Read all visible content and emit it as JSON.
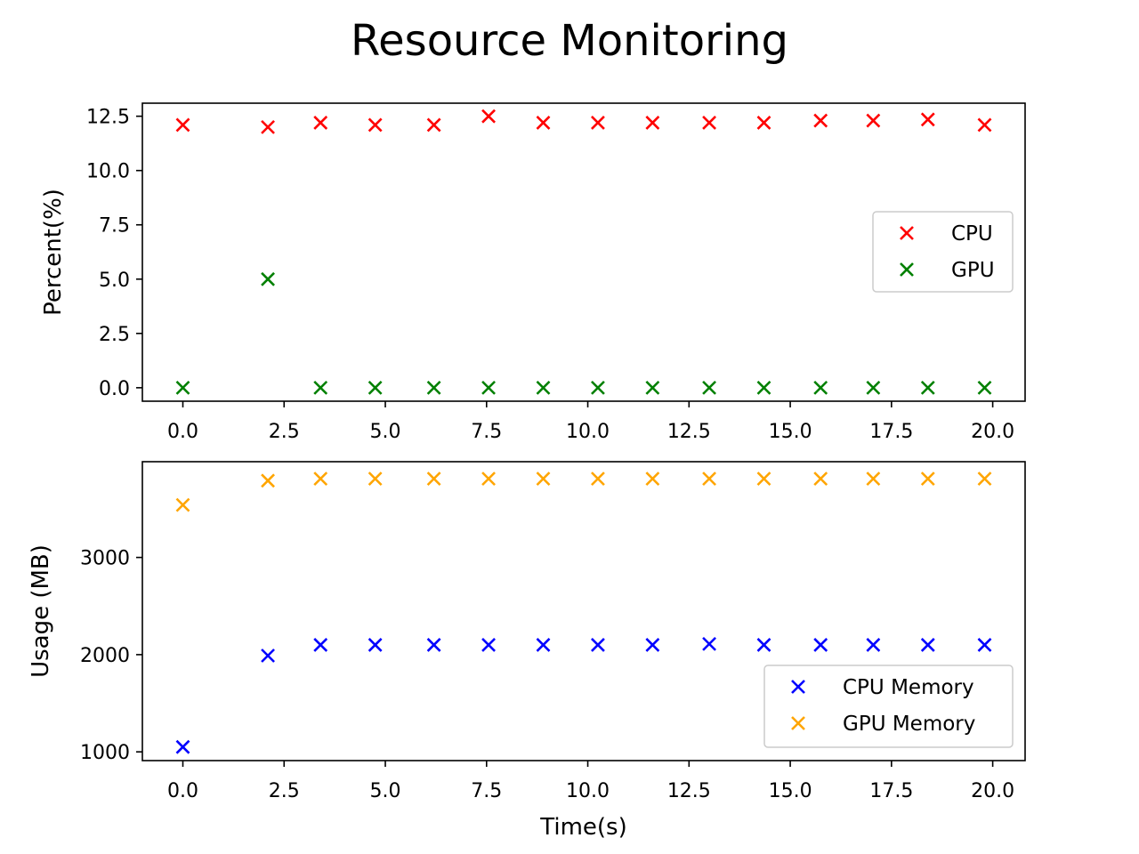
{
  "chart_data": {
    "title": "Resource Monitoring",
    "plots": [
      {
        "type": "scatter",
        "xlabel": "",
        "ylabel": "Percent(%)",
        "xlim": [
          -1,
          20.8
        ],
        "ylim": [
          -0.62,
          13.1
        ],
        "x_ticks": [
          0.0,
          2.5,
          5.0,
          7.5,
          10.0,
          12.5,
          15.0,
          17.5,
          20.0
        ],
        "x_tick_labels": [
          "0.0",
          "2.5",
          "5.0",
          "7.5",
          "10.0",
          "12.5",
          "15.0",
          "17.5",
          "20.0"
        ],
        "y_ticks": [
          0.0,
          2.5,
          5.0,
          7.5,
          10.0,
          12.5
        ],
        "y_tick_labels": [
          "0.0",
          "2.5",
          "5.0",
          "7.5",
          "10.0",
          "12.5"
        ],
        "grid": false,
        "legend": "center-right",
        "series": [
          {
            "name": "CPU",
            "color": "#ff0000",
            "marker": "x",
            "x": [
              0.0,
              2.1,
              3.4,
              4.75,
              6.2,
              7.55,
              8.9,
              10.25,
              11.6,
              13.0,
              14.35,
              15.75,
              17.05,
              18.4,
              19.8
            ],
            "y": [
              12.1,
              12.0,
              12.2,
              12.1,
              12.1,
              12.5,
              12.2,
              12.2,
              12.2,
              12.2,
              12.2,
              12.3,
              12.3,
              12.35,
              12.1
            ]
          },
          {
            "name": "GPU",
            "color": "#008000",
            "marker": "x",
            "x": [
              0.0,
              2.1,
              3.4,
              4.75,
              6.2,
              7.55,
              8.9,
              10.25,
              11.6,
              13.0,
              14.35,
              15.75,
              17.05,
              18.4,
              19.8
            ],
            "y": [
              0,
              5,
              0,
              0,
              0,
              0,
              0,
              0,
              0,
              0,
              0,
              0,
              0,
              0,
              0
            ]
          }
        ]
      },
      {
        "type": "scatter",
        "xlabel": "Time(s)",
        "ylabel": "Usage (MB)",
        "xlim": [
          -1,
          20.8
        ],
        "ylim": [
          910,
          3985
        ],
        "x_ticks": [
          0.0,
          2.5,
          5.0,
          7.5,
          10.0,
          12.5,
          15.0,
          17.5,
          20.0
        ],
        "x_tick_labels": [
          "0.0",
          "2.5",
          "5.0",
          "7.5",
          "10.0",
          "12.5",
          "15.0",
          "17.5",
          "20.0"
        ],
        "y_ticks": [
          1000,
          2000,
          3000
        ],
        "y_tick_labels": [
          "1000",
          "2000",
          "3000"
        ],
        "grid": false,
        "legend": "lower-right",
        "series": [
          {
            "name": "CPU Memory",
            "color": "#0000ff",
            "marker": "x",
            "x": [
              0.0,
              2.1,
              3.4,
              4.75,
              6.2,
              7.55,
              8.9,
              10.25,
              11.6,
              13.0,
              14.35,
              15.75,
              17.05,
              18.4,
              19.8
            ],
            "y": [
              1050,
              1990,
              2100,
              2100,
              2100,
              2100,
              2100,
              2100,
              2100,
              2110,
              2100,
              2100,
              2100,
              2100,
              2100
            ]
          },
          {
            "name": "GPU Memory",
            "color": "#ffa500",
            "marker": "x",
            "x": [
              0.0,
              2.1,
              3.4,
              4.75,
              6.2,
              7.55,
              8.9,
              10.25,
              11.6,
              13.0,
              14.35,
              15.75,
              17.05,
              18.4,
              19.8
            ],
            "y": [
              3540,
              3790,
              3810,
              3810,
              3810,
              3810,
              3810,
              3810,
              3810,
              3810,
              3810,
              3810,
              3810,
              3810,
              3810
            ]
          }
        ]
      }
    ]
  }
}
